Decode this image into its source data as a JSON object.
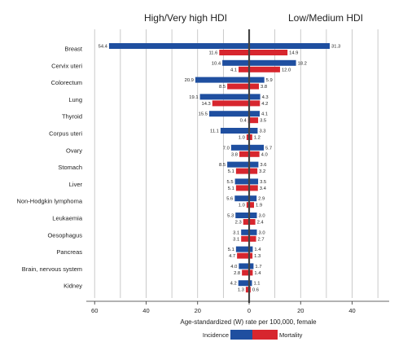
{
  "chart_data": {
    "type": "bar",
    "orientation": "horizontal-diverging",
    "panel_left_title": "High/Very high HDI",
    "panel_right_title": "Low/Medium HDI",
    "xlabel": "Age-standardized (W) rate per 100,000, female",
    "xlim": [
      -60,
      60
    ],
    "xticks": [
      -60,
      -40,
      -20,
      0,
      20,
      40
    ],
    "xtick_labels": [
      "60",
      "40",
      "20",
      "0",
      "20",
      "40"
    ],
    "grid": true,
    "legend_position": "bottom",
    "legend": [
      {
        "name": "Incidence",
        "color": "#1f4fa0"
      },
      {
        "name": "Mortality",
        "color": "#d7262e"
      }
    ],
    "categories": [
      "Breast",
      "Cervix uteri",
      "Colorectum",
      "Lung",
      "Thyroid",
      "Corpus uteri",
      "Ovary",
      "Stomach",
      "Liver",
      "Non-Hodgkin lymphoma",
      "Leukaemia",
      "Oesophagus",
      "Pancreas",
      "Brain, nervous system",
      "Kidney"
    ],
    "series": [
      {
        "name": "Incidence",
        "side": "left",
        "values": [
          54.4,
          10.4,
          20.9,
          19.1,
          15.5,
          11.1,
          7.0,
          8.5,
          5.5,
          5.6,
          5.3,
          3.1,
          5.1,
          4.0,
          4.2
        ]
      },
      {
        "name": "Mortality",
        "side": "left",
        "values": [
          11.6,
          4.1,
          8.5,
          14.3,
          0.4,
          1.0,
          3.8,
          5.1,
          5.1,
          1.0,
          2.3,
          3.1,
          4.7,
          2.8,
          1.3
        ]
      },
      {
        "name": "Incidence",
        "side": "right",
        "values": [
          31.3,
          18.2,
          5.9,
          4.3,
          4.1,
          3.3,
          5.7,
          3.6,
          3.5,
          2.9,
          3.0,
          3.0,
          1.4,
          1.7,
          1.1
        ]
      },
      {
        "name": "Mortality",
        "side": "right",
        "values": [
          14.9,
          12.0,
          3.8,
          4.2,
          3.5,
          1.2,
          4.0,
          3.2,
          3.4,
          1.9,
          2.4,
          2.7,
          1.3,
          1.4,
          0.6
        ]
      }
    ],
    "data_labels": {
      "left_incidence": [
        "54.4",
        "10.4",
        "20.9",
        "19.1",
        "15.5",
        "11.1",
        "7.0",
        "8.5",
        "5.5",
        "5.6",
        "5.3",
        "3.1",
        "5.1",
        "4.0",
        "4.2"
      ],
      "left_mortality": [
        "11.6",
        "4.1",
        "8.5",
        "14.3",
        "0.4",
        "1.0",
        "3.8",
        "5.1",
        "5.1",
        "1.0",
        "2.3",
        "3.1",
        "4.7",
        "2.8",
        "1.3"
      ],
      "right_incidence": [
        "31.3",
        "18.2",
        "5.9",
        "4.3",
        "4.1",
        "3.3",
        "5.7",
        "3.6",
        "3.5",
        "2.9",
        "3.0",
        "3.0",
        "1.4",
        "1.7",
        "1.1"
      ],
      "right_mortality": [
        "14.9",
        "12.0",
        "3.8",
        "4.2",
        "3.5",
        "1.2",
        "4.0",
        "3.2",
        "3.4",
        "1.9",
        "2.4",
        "2.7",
        "1.3",
        "1.4",
        "0.6"
      ]
    }
  }
}
